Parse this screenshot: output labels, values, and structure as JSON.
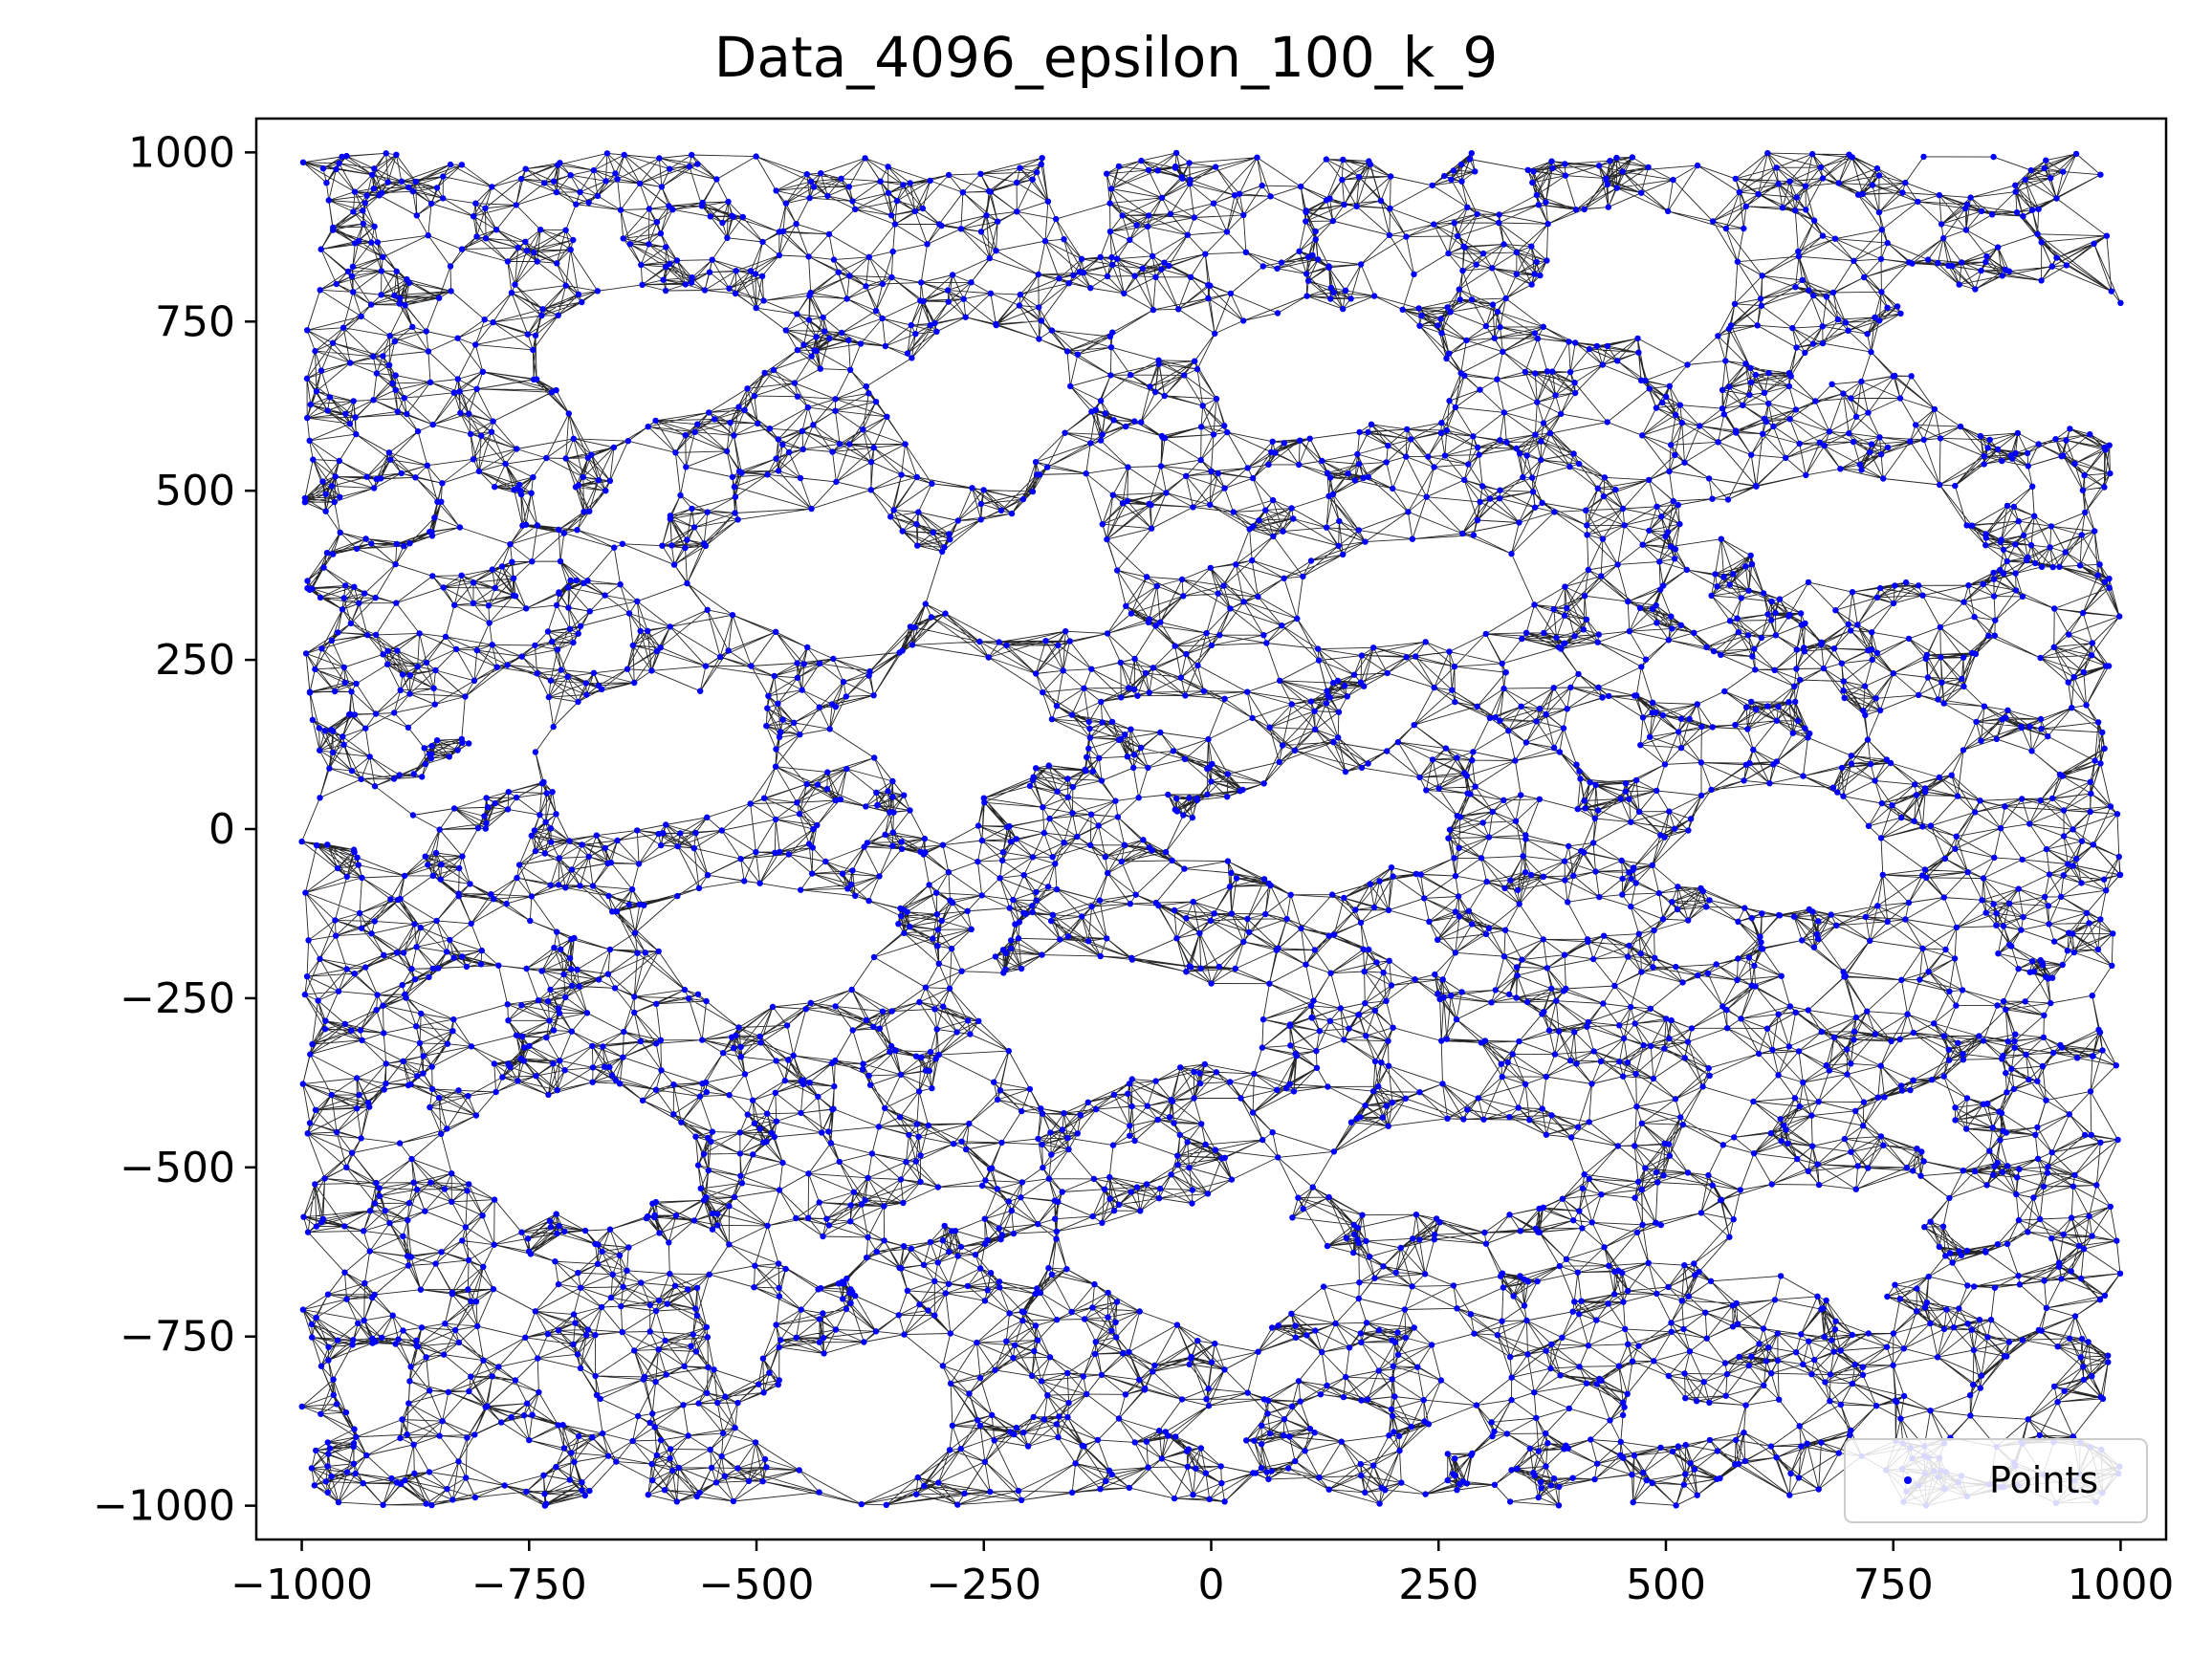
{
  "chart_data": {
    "type": "scatter",
    "title": "Data_4096_epsilon_100_k_9",
    "xlabel": "",
    "ylabel": "",
    "xlim": [
      -1050,
      1050
    ],
    "ylim": [
      -1050,
      1050
    ],
    "xticks": [
      -1000,
      -750,
      -500,
      -250,
      0,
      250,
      500,
      750,
      1000
    ],
    "yticks": [
      -1000,
      -750,
      -500,
      -250,
      0,
      250,
      500,
      750,
      1000
    ],
    "xtick_labels": [
      "−1000",
      "−750",
      "−500",
      "−250",
      "0",
      "250",
      "500",
      "750",
      "1000"
    ],
    "ytick_labels": [
      "−1000",
      "−750",
      "−500",
      "−250",
      "0",
      "250",
      "500",
      "750",
      "1000"
    ],
    "point_count": 4096,
    "edge_description": "k-nearest-neighbor graph, k = 9, thin black edges",
    "point_domain": {
      "x": [
        -1000,
        1000
      ],
      "y": [
        -1000,
        1000
      ]
    },
    "voids": [
      {
        "cx": -620,
        "cy": 700,
        "rx": 120,
        "ry": 90
      },
      {
        "cx": -250,
        "cy": 630,
        "rx": 90,
        "ry": 110
      },
      {
        "cx": 130,
        "cy": 680,
        "rx": 130,
        "ry": 80
      },
      {
        "cx": 480,
        "cy": 820,
        "rx": 100,
        "ry": 90
      },
      {
        "cx": 900,
        "cy": 700,
        "rx": 120,
        "ry": 110
      },
      {
        "cx": -440,
        "cy": 380,
        "rx": 120,
        "ry": 90
      },
      {
        "cx": -200,
        "cy": 380,
        "rx": 90,
        "ry": 80
      },
      {
        "cx": 230,
        "cy": 350,
        "rx": 130,
        "ry": 70
      },
      {
        "cx": 700,
        "cy": 440,
        "rx": 110,
        "ry": 80
      },
      {
        "cx": -610,
        "cy": 100,
        "rx": 130,
        "ry": 90
      },
      {
        "cx": -280,
        "cy": 150,
        "rx": 100,
        "ry": 100
      },
      {
        "cx": 120,
        "cy": 0,
        "rx": 130,
        "ry": 70
      },
      {
        "cx": 630,
        "cy": -40,
        "rx": 110,
        "ry": 80
      },
      {
        "cx": -490,
        "cy": -170,
        "rx": 110,
        "ry": 80
      },
      {
        "cx": -120,
        "cy": -280,
        "rx": 120,
        "ry": 90
      },
      {
        "cx": -690,
        "cy": -480,
        "rx": 120,
        "ry": 90
      },
      {
        "cx": 260,
        "cy": -500,
        "rx": 130,
        "ry": 70
      },
      {
        "cx": 0,
        "cy": -640,
        "rx": 130,
        "ry": 80
      },
      {
        "cx": -380,
        "cy": -870,
        "rx": 90,
        "ry": 110
      },
      {
        "cx": 680,
        "cy": -600,
        "rx": 90,
        "ry": 70
      }
    ],
    "marker_color": "#0000ff",
    "edge_color": "#000000",
    "grid": false,
    "legend": {
      "entries": [
        "Points"
      ],
      "placement": "lower-right"
    }
  }
}
